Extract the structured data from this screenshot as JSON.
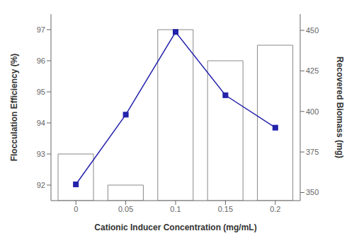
{
  "chart_data": {
    "type": "bar",
    "x": [
      0,
      0.05,
      0.1,
      0.15,
      0.2
    ],
    "xlabel": "Cationic Inducer Concentration (mg/mL)",
    "ylabel": "Flocculation Efficiency (%)",
    "y2label": "Recovered Biomass (mg)",
    "xlim": [
      -0.025,
      0.225
    ],
    "xticks": [
      0,
      0.05,
      0.1,
      0.15,
      0.2
    ],
    "ylim": [
      91.5,
      97.5
    ],
    "yticks": [
      92,
      93,
      94,
      95,
      96,
      97
    ],
    "y2lim": [
      345,
      460
    ],
    "y2ticks": [
      350,
      375,
      400,
      425,
      450
    ],
    "grid": false,
    "series": [
      {
        "type": "bar",
        "color": "white",
        "values": [
          93,
          92,
          97,
          96,
          96.5
        ]
      },
      {
        "type": "line",
        "axis": "y2",
        "color": "#2222AA",
        "marker": "square",
        "values": [
          355,
          398,
          449,
          410,
          390
        ]
      }
    ]
  }
}
